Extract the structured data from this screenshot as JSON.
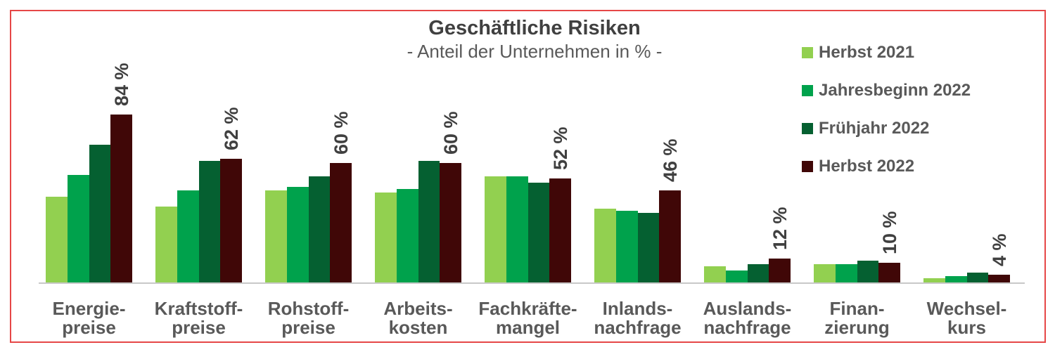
{
  "chart_data": {
    "type": "bar",
    "title": "Geschäftliche Risiken",
    "subtitle": "- Anteil der Unternehmen in % -",
    "ylabel": "Anteil der Unternehmen in %",
    "ylim": [
      0,
      90
    ],
    "grid": false,
    "legend_position": "top-right",
    "categories": [
      "Energiepreise",
      "Kraftstoffpreise",
      "Rohstoffpreise",
      "Arbeitskosten",
      "Fachkräftemangel",
      "Inlandsnachfrage",
      "Auslandsnachfrage",
      "Finanzierung",
      "Wechselkurs"
    ],
    "category_label_lines": [
      [
        "Energie-",
        "preise"
      ],
      [
        "Kraftstoff-",
        "preise"
      ],
      [
        "Rohstoff-",
        "preise"
      ],
      [
        "Arbeits-",
        "kosten"
      ],
      [
        "Fachkräfte-",
        "mangel"
      ],
      [
        "Inlands-",
        "nachfrage"
      ],
      [
        "Auslands-",
        "nachfrage"
      ],
      [
        "Finan-",
        "zierung"
      ],
      [
        "Wechsel-",
        "kurs"
      ]
    ],
    "series": [
      {
        "name": "Herbst 2021",
        "color": "#92D050",
        "values": [
          43,
          38,
          46,
          45,
          53,
          37,
          8,
          9,
          2
        ]
      },
      {
        "name": "Jahresbeginn 2022",
        "color": "#00A24C",
        "values": [
          54,
          46,
          48,
          47,
          53,
          36,
          6,
          9,
          3
        ]
      },
      {
        "name": "Frühjahr 2022",
        "color": "#056031",
        "values": [
          69,
          61,
          53,
          61,
          50,
          35,
          9,
          11,
          5
        ]
      },
      {
        "name": "Herbst 2022",
        "color": "#400707",
        "values": [
          84,
          62,
          60,
          60,
          52,
          46,
          12,
          10,
          4
        ]
      }
    ],
    "annotations": [
      "84 %",
      "62 %",
      "60 %",
      "60 %",
      "52 %",
      "46 %",
      "12 %",
      "10 %",
      "4 %"
    ],
    "annotation_series": "Herbst 2022"
  },
  "colors": {
    "frame_border": "#e64747",
    "axis_line": "#c8c8c8",
    "title_text": "#404040",
    "subtitle_text": "#595959",
    "category_text": "#595959",
    "annotation_text": "#404040"
  }
}
